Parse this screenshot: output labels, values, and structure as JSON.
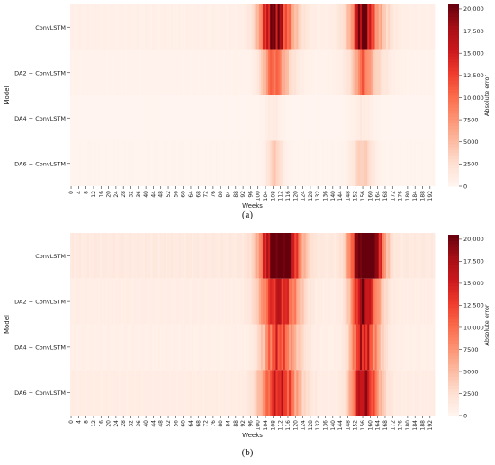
{
  "chart_data": [
    {
      "type": "heatmap",
      "panel_label": "(a)",
      "xlabel": "Weeks",
      "ylabel": "Model",
      "colorbar_label": "Absolute error",
      "colorbar_ticks": [
        "0",
        "2500",
        "5000",
        "7500",
        "10,000",
        "12,500",
        "15,000",
        "17,500",
        "20,000"
      ],
      "colorbar_range": [
        0,
        20500
      ],
      "colormap": "Reds",
      "rows": [
        "ConvLSTM",
        "DA2 + ConvLSTM",
        "DA4 + ConvLSTM",
        "DA6 + ConvLSTM"
      ],
      "x_ticks": [
        "0",
        "4",
        "8",
        "12",
        "16",
        "20",
        "24",
        "28",
        "32",
        "36",
        "40",
        "44",
        "48",
        "52",
        "56",
        "60",
        "64",
        "68",
        "72",
        "76",
        "80",
        "84",
        "88",
        "92",
        "96",
        "100",
        "104",
        "108",
        "112",
        "116",
        "120",
        "124",
        "128",
        "132",
        "136",
        "140",
        "144",
        "148",
        "152",
        "156",
        "160",
        "164",
        "168",
        "172",
        "176",
        "180",
        "184",
        "188",
        "192"
      ],
      "n_weeks": 195,
      "rows_profile": [
        {
          "baseline": 700,
          "peaks": [
            [
              108,
              5,
              13000
            ],
            [
              112,
              7,
              7000
            ],
            [
              156,
              3,
              13500
            ],
            [
              158,
              7,
              9000
            ]
          ]
        },
        {
          "baseline": 350,
          "peaks": [
            [
              108,
              4,
              7500
            ],
            [
              112,
              6,
              3500
            ],
            [
              156,
              3,
              6000
            ],
            [
              158,
              7,
              4000
            ]
          ]
        },
        {
          "baseline": 120,
          "peaks": [
            [
              108,
              3,
              1200
            ],
            [
              156,
              4,
              1200
            ]
          ]
        },
        {
          "baseline": 180,
          "peaks": [
            [
              109,
              3,
              3800
            ],
            [
              156,
              4,
              3800
            ]
          ]
        }
      ]
    },
    {
      "type": "heatmap",
      "panel_label": "(b)",
      "xlabel": "Weeks",
      "ylabel": "Model",
      "colorbar_label": "Absolute error",
      "colorbar_ticks": [
        "0",
        "2500",
        "5000",
        "7500",
        "10,000",
        "12,500",
        "15,000",
        "17,500",
        "20,000"
      ],
      "colorbar_range": [
        0,
        20500
      ],
      "colormap": "Reds",
      "rows": [
        "ConvLSTM",
        "DA2 + ConvLSTM",
        "DA4 + ConvLSTM",
        "DA6 + ConvLSTM"
      ],
      "x_ticks": [
        "0",
        "4",
        "8",
        "12",
        "16",
        "20",
        "24",
        "28",
        "32",
        "36",
        "40",
        "44",
        "48",
        "52",
        "56",
        "60",
        "64",
        "68",
        "72",
        "76",
        "80",
        "84",
        "88",
        "92",
        "96",
        "100",
        "104",
        "108",
        "112",
        "116",
        "120",
        "124",
        "128",
        "132",
        "136",
        "140",
        "144",
        "148",
        "152",
        "156",
        "160",
        "164",
        "168",
        "172",
        "176",
        "180",
        "184",
        "188",
        "192"
      ],
      "n_weeks": 195,
      "rows_profile": [
        {
          "baseline": 1400,
          "peaks": [
            [
              110,
              6,
              19500
            ],
            [
              116,
              6,
              9000
            ],
            [
              154,
              4,
              15000
            ],
            [
              159,
              3,
              20500
            ],
            [
              163,
              4,
              12000
            ]
          ]
        },
        {
          "baseline": 900,
          "peaks": [
            [
              109,
              6,
              11000
            ],
            [
              116,
              6,
              6000
            ],
            [
              155,
              4,
              12000
            ],
            [
              160,
              5,
              8000
            ]
          ]
        },
        {
          "baseline": 700,
          "peaks": [
            [
              109,
              5,
              9000
            ],
            [
              116,
              6,
              5000
            ],
            [
              155,
              4,
              10000
            ],
            [
              160,
              5,
              7000
            ]
          ]
        },
        {
          "baseline": 1000,
          "peaks": [
            [
              109,
              6,
              10000
            ],
            [
              116,
              6,
              6000
            ],
            [
              155,
              4,
              11000
            ],
            [
              160,
              5,
              8000
            ]
          ]
        }
      ]
    }
  ]
}
